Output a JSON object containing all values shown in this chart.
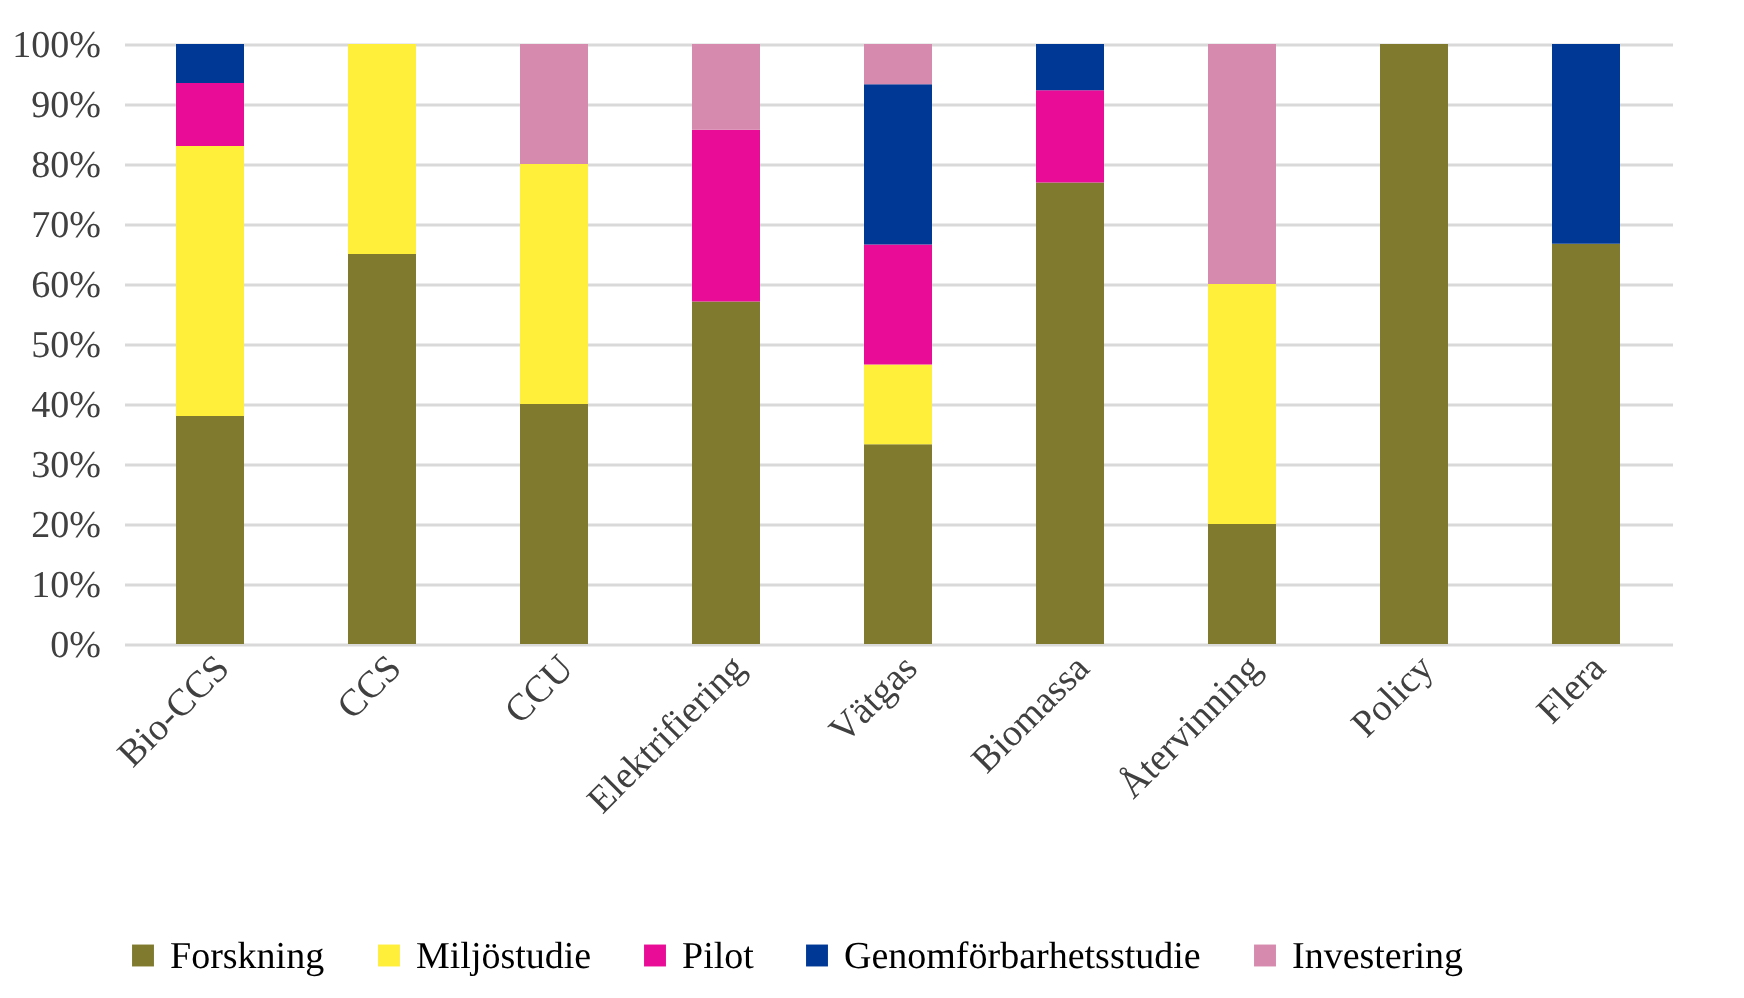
{
  "chart_data": {
    "type": "bar",
    "stacked": true,
    "categories": [
      "Bio-CCS",
      "CCS",
      "CCU",
      "Elektrifiering",
      "Vätgas",
      "Biomassa",
      "Återvinning",
      "Policy",
      "Flera"
    ],
    "series": [
      {
        "name": "Forskning",
        "color": "#7f7a2e",
        "values": [
          38,
          65,
          40,
          57.1,
          33.3,
          76.9,
          20,
          100,
          66.7
        ]
      },
      {
        "name": "Miljöstudie",
        "color": "#ffee3a",
        "values": [
          45,
          35,
          40,
          null,
          13.3,
          null,
          40,
          null,
          null
        ]
      },
      {
        "name": "Pilot",
        "color": "#e80c96",
        "values": [
          10.5,
          null,
          null,
          28.6,
          20,
          15.4,
          null,
          null,
          null
        ]
      },
      {
        "name": "Genomförbarhetsstudie",
        "color": "#003896",
        "values": [
          6.5,
          null,
          null,
          null,
          26.7,
          7.7,
          null,
          null,
          33.3
        ]
      },
      {
        "name": "Investering",
        "color": "#d68aae",
        "values": [
          null,
          null,
          20,
          14.3,
          6.7,
          null,
          40,
          null,
          null
        ]
      }
    ],
    "ylim": [
      0,
      100
    ],
    "yticks": [
      {
        "value": 0,
        "label": "0%"
      },
      {
        "value": 10,
        "label": "10%"
      },
      {
        "value": 20,
        "label": "20%"
      },
      {
        "value": 30,
        "label": "30%"
      },
      {
        "value": 40,
        "label": "40%"
      },
      {
        "value": 50,
        "label": "50%"
      },
      {
        "value": 60,
        "label": "60%"
      },
      {
        "value": 70,
        "label": "70%"
      },
      {
        "value": 80,
        "label": "80%"
      },
      {
        "value": 90,
        "label": "90%"
      },
      {
        "value": 100,
        "label": "100%"
      }
    ],
    "grid": "y",
    "legend": "bottom"
  }
}
